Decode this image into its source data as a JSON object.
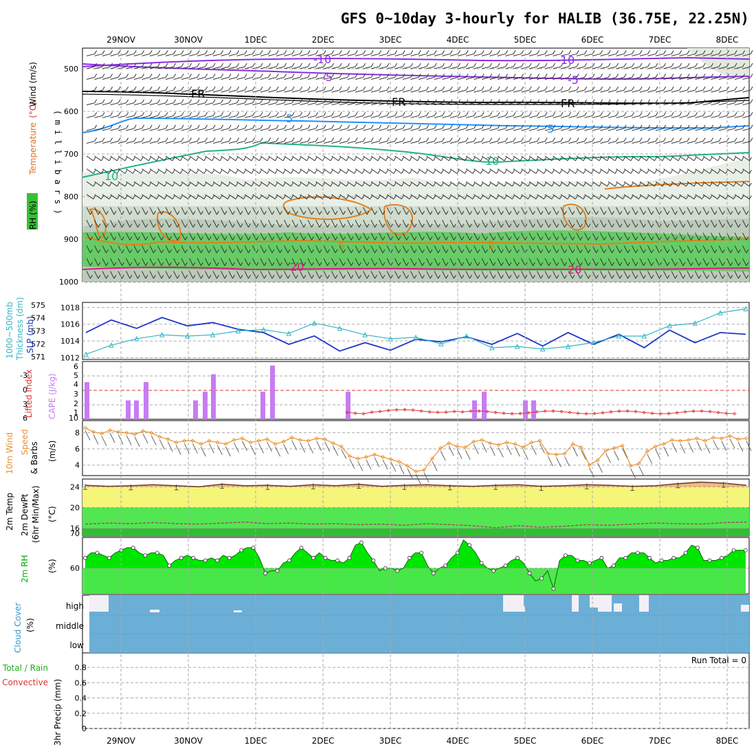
{
  "title": "GFS 0~10day 3-hourly for HALIB (36.75E, 22.25N)",
  "dates": [
    "29NOV",
    "30NOV",
    "1DEC",
    "2DEC",
    "3DEC",
    "4DEC",
    "5DEC",
    "6DEC",
    "7DEC",
    "8DEC"
  ],
  "panels": {
    "upper": {
      "ylabel_wind": "Wind (m/s)",
      "ylabel_temp_a": "Temperature",
      "ylabel_temp_b": "(°C)",
      "ylabel_rh": "RH (%)",
      "ylabel_mb": "( m i l l i b a r s )",
      "pressure_ticks": [
        "500",
        "600",
        "700",
        "800",
        "900",
        "1000"
      ]
    },
    "thick": {
      "label_a": "1000~500mb",
      "label_b": "Thickness (dm)",
      "label_c": "SLP (mb)",
      "thick_ticks": [
        "575",
        "574",
        "573",
        "572",
        "571"
      ],
      "slp_ticks": [
        "1018",
        "1016",
        "1014",
        "1012"
      ]
    },
    "cape": {
      "label_li": "Lifted Index",
      "label_cape": "CAPE (J/kg)",
      "li_ticks": [
        "-3",
        "0",
        "3",
        "6"
      ],
      "cape_ticks": [
        "6",
        "5",
        "4",
        "3",
        "2",
        "1",
        "10"
      ]
    },
    "wind10": {
      "label_a": "10m Wind",
      "label_b": "Speed",
      "label_c": "& Barbs",
      "unit": "(m/s)",
      "ticks": [
        "8",
        "6",
        "4"
      ]
    },
    "temp2m": {
      "label_a": "2m Temp",
      "label_b": "2m DewPt",
      "label_c": "(6hr Min/Max)",
      "unit": "(°C)",
      "ticks": [
        "24",
        "20",
        "16",
        "70"
      ]
    },
    "rh2m": {
      "label": "2m RH",
      "unit": "(%)",
      "ticks": [
        "60"
      ]
    },
    "cloud": {
      "label": "Cloud Cover",
      "unit": "(%)",
      "levels": [
        "high",
        "middle",
        "low"
      ]
    },
    "precip": {
      "label_a": "Total / Rain",
      "label_b": "Convective",
      "label_c": "3hr Precip (mm)",
      "run_total": "Run Total = 0",
      "ticks": [
        "0.8",
        "0.6",
        "0.4",
        "0.2",
        "0"
      ]
    }
  },
  "chart_data": [
    {
      "type": "line",
      "name": "1000~500mb Thickness / SLP",
      "x": [
        "28NOV12",
        "28NOV21",
        "29NOV06",
        "29NOV15",
        "30NOV00",
        "30NOV09",
        "30NOV18",
        "1DEC03",
        "1DEC12",
        "1DEC21",
        "2DEC06",
        "2DEC15",
        "3DEC00",
        "3DEC09",
        "3DEC18",
        "4DEC03",
        "4DEC12",
        "4DEC21",
        "5DEC06",
        "5DEC15",
        "6DEC00",
        "6DEC09",
        "6DEC18",
        "7DEC03",
        "7DEC12",
        "7DEC21",
        "8DEC06"
      ],
      "series": [
        {
          "name": "SLP",
          "axis": "SLP (mb)",
          "color": "#1f35c8",
          "values": [
            1015.0,
            1016.5,
            1015.5,
            1016.8,
            1015.8,
            1016.2,
            1015.4,
            1015.0,
            1013.6,
            1014.6,
            1012.8,
            1013.8,
            1012.9,
            1014.2,
            1013.9,
            1014.5,
            1013.6,
            1014.9,
            1013.4,
            1015.0,
            1013.6,
            1014.8,
            1013.2,
            1015.3,
            1013.8,
            1015.0,
            1014.8
          ]
        },
        {
          "name": "Thickness",
          "axis": "Thickness (dm)",
          "color": "#33b5c4",
          "values": [
            571.2,
            571.9,
            572.4,
            572.7,
            572.6,
            572.7,
            573.0,
            573.1,
            572.8,
            573.6,
            573.2,
            572.7,
            572.4,
            572.5,
            572.0,
            572.6,
            571.7,
            571.8,
            571.6,
            571.8,
            572.1,
            572.6,
            572.6,
            573.4,
            573.6,
            574.4,
            574.7
          ]
        }
      ],
      "yranges": {
        "SLP (mb)": [
          1011.8,
          1018.6
        ],
        "Thickness (dm)": [
          570.8,
          575.2
        ]
      },
      "grid": true
    },
    {
      "type": "bar",
      "name": "CAPE",
      "categories": [
        "28NOV12",
        "29NOV06",
        "29NOV09",
        "29NOV15",
        "30NOV06",
        "30NOV09",
        "30NOV12",
        "1DEC06",
        "1DEC09",
        "2DEC18",
        "4DEC12",
        "4DEC15",
        "5DEC00",
        "5DEC03"
      ],
      "values": [
        4.1,
        2.0,
        2.0,
        4.1,
        2.0,
        3.0,
        5.0,
        3.0,
        6.0,
        3.0,
        2.0,
        3.0,
        2.0,
        2.0
      ],
      "color": "#c77cf2",
      "ylabel": "CAPE (J/kg)"
    },
    {
      "type": "line",
      "name": "10m Wind Speed",
      "x_start": "28NOV12",
      "step_hours": 3,
      "values": [
        8.6,
        8.1,
        7.9,
        8.3,
        8.1,
        8.0,
        7.8,
        8.2,
        8.0,
        7.5,
        7.2,
        6.8,
        7.0,
        7.0,
        6.6,
        7.0,
        6.8,
        6.6,
        7.1,
        7.3,
        6.8,
        7.0,
        7.2,
        6.6,
        6.9,
        7.4,
        7.1,
        7.0,
        7.3,
        7.2,
        6.7,
        6.3,
        5.1,
        4.8,
        5.0,
        5.3,
        5.0,
        4.7,
        4.4,
        3.9,
        3.2,
        3.4,
        4.8,
        6.1,
        6.7,
        6.3,
        6.2,
        6.9,
        7.1,
        6.7,
        6.5,
        6.8,
        6.6,
        6.2,
        6.8,
        7.0,
        5.4,
        5.3,
        5.4,
        6.6,
        6.2,
        4.0,
        4.6,
        5.8,
        6.1,
        6.4,
        3.9,
        4.2,
        5.7,
        6.3,
        6.6,
        7.1,
        7.0,
        7.1,
        7.3,
        7.0,
        7.4,
        7.3,
        7.6,
        7.2,
        7.3
      ],
      "color": "#e8912b",
      "ylim": [
        2.7,
        9.5
      ]
    },
    {
      "type": "area",
      "name": "2m Temp / DewPt",
      "series": [
        {
          "name": "2m Temp",
          "color": "#c87b4a",
          "values": [
            24.3,
            24.1,
            24.2,
            24.4,
            24.2,
            24.0,
            24.5,
            24.2,
            24.3,
            24.1,
            24.4,
            24.2,
            24.5,
            24.1,
            24.3,
            24.4,
            24.2,
            24.1,
            24.3,
            24.4,
            24.1,
            24.2,
            24.4,
            24.3,
            24.1,
            24.2,
            24.6,
            24.9,
            24.7,
            24.3
          ]
        },
        {
          "name": "2m DewPt",
          "color": "#9c4f68",
          "values": [
            16.8,
            17.0,
            16.9,
            17.1,
            16.9,
            16.8,
            17.0,
            17.2,
            16.9,
            17.0,
            16.8,
            16.9,
            16.7,
            16.8,
            16.6,
            16.9,
            16.7,
            16.5,
            16.1,
            16.5,
            16.2,
            16.4,
            16.7,
            16.6,
            16.8,
            17.0,
            16.9,
            16.8,
            17.1,
            17.2
          ]
        }
      ],
      "ylim": [
        14.5,
        25.5
      ]
    },
    {
      "type": "area",
      "name": "2m RH",
      "x_start": "28NOV12",
      "step_hours": 3,
      "values": [
        64,
        66,
        66,
        65,
        64,
        66,
        67,
        68,
        68,
        66,
        65,
        66,
        66,
        65,
        61,
        63,
        64,
        65,
        64,
        63,
        63,
        64,
        63,
        65,
        64,
        65,
        67,
        68,
        68,
        64,
        58,
        59,
        59,
        62,
        63,
        66,
        68,
        66,
        64,
        66,
        64,
        63,
        63,
        62,
        64,
        69,
        70,
        66,
        63,
        59,
        60,
        60,
        59,
        60,
        64,
        66,
        66,
        61,
        58,
        60,
        61,
        64,
        66,
        71,
        69,
        66,
        62,
        60,
        59,
        60,
        61,
        63,
        64,
        62,
        58,
        55,
        56,
        59,
        52,
        63,
        65,
        65,
        63,
        63,
        62,
        63,
        64,
        60,
        61,
        64,
        64,
        66,
        66,
        66,
        64,
        62,
        63,
        63,
        64,
        64,
        66,
        69,
        68,
        63,
        63,
        63,
        64,
        65,
        67,
        67,
        67
      ],
      "color": "#00e600",
      "ylim": [
        50,
        72
      ]
    }
  ]
}
